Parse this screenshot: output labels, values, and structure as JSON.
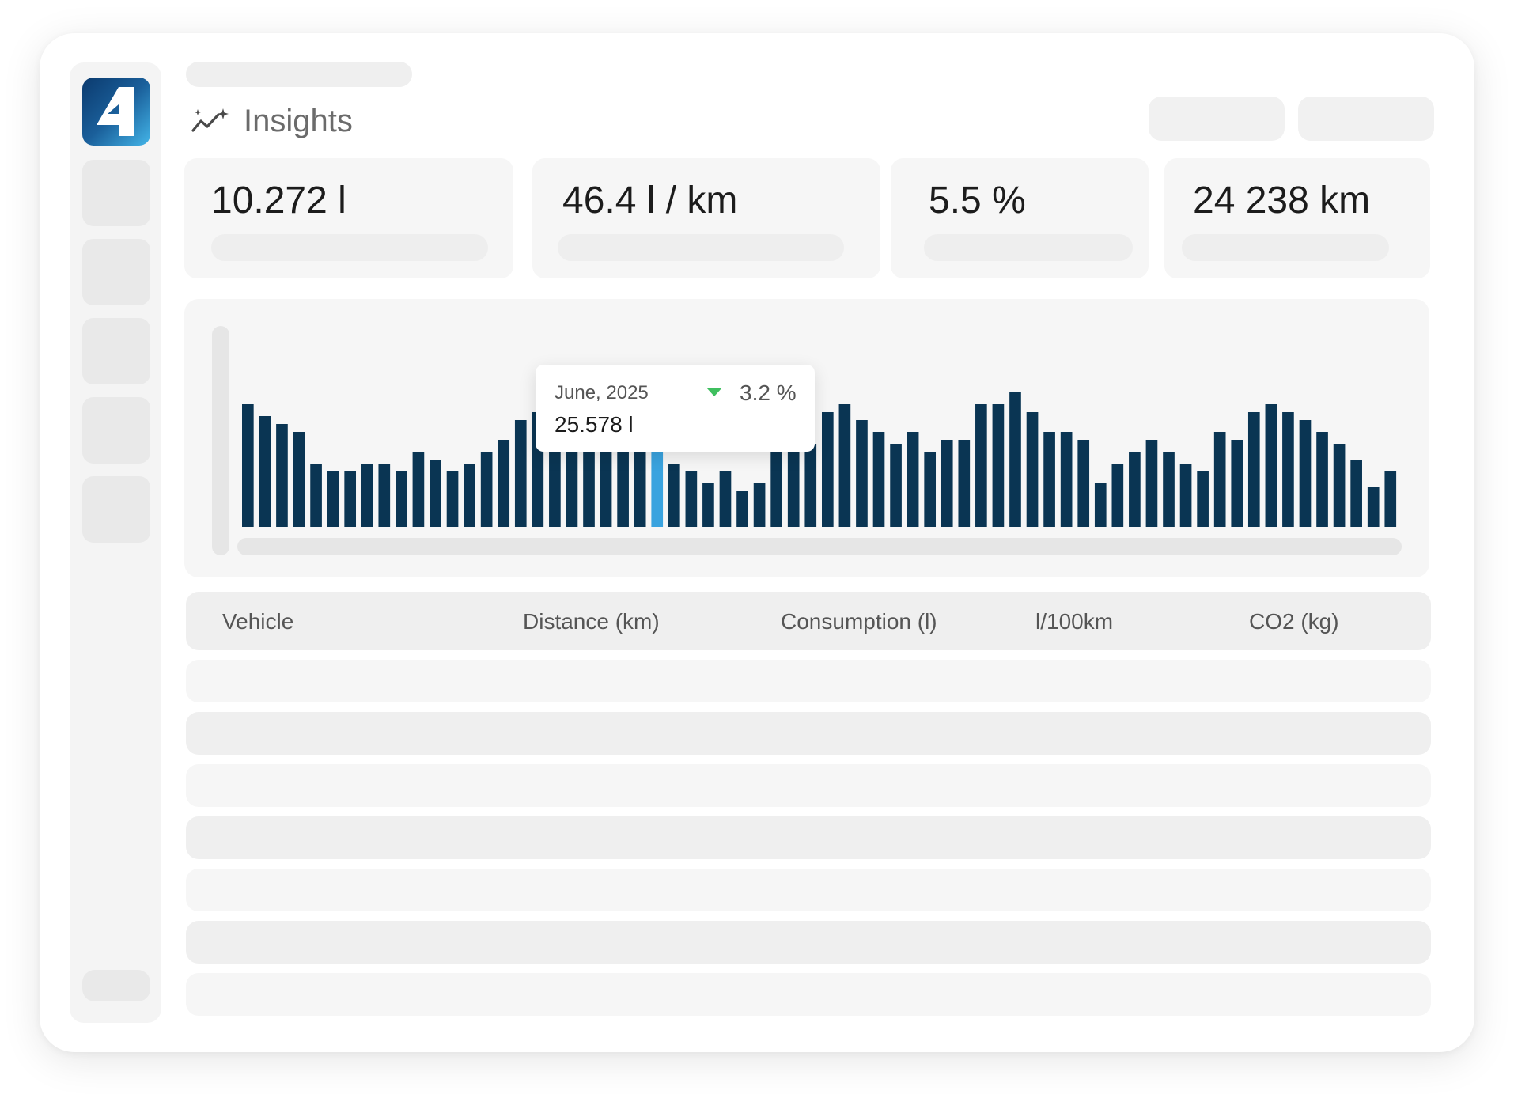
{
  "header": {
    "title": "Insights",
    "title_icon": "sparkle-trend-icon"
  },
  "kpis": [
    {
      "value": "10.272 l"
    },
    {
      "value": "46.4 l / km"
    },
    {
      "value": "5.5 %"
    },
    {
      "value": "24 238 km"
    }
  ],
  "chart_data": {
    "type": "bar",
    "series": [
      {
        "values": [
          31,
          28,
          26,
          24,
          16,
          14,
          14,
          16,
          16,
          14,
          19,
          17,
          14,
          16,
          19,
          22,
          27,
          29,
          23,
          22,
          21,
          21,
          21,
          21,
          21,
          16,
          14,
          11,
          14,
          9,
          11,
          19,
          19,
          21,
          29,
          31,
          27,
          24,
          21,
          24,
          19,
          22,
          22,
          31,
          31,
          34,
          29,
          24,
          24,
          22,
          11,
          16,
          19,
          22,
          19,
          16,
          14,
          24,
          22,
          29,
          31,
          29,
          27,
          24,
          21,
          17,
          10,
          14
        ]
      }
    ],
    "highlight_index": 24,
    "colors": {
      "bar": "#0a3553",
      "highlight": "#3aa3df"
    },
    "tooltip": {
      "date": "June, 2025",
      "value": "25.578 l",
      "change": "3.2 %",
      "trend": "down"
    }
  },
  "table": {
    "columns": [
      "Vehicle",
      "Distance (km)",
      "Consumption (l)",
      "l/100km",
      "CO2 (kg)"
    ]
  }
}
